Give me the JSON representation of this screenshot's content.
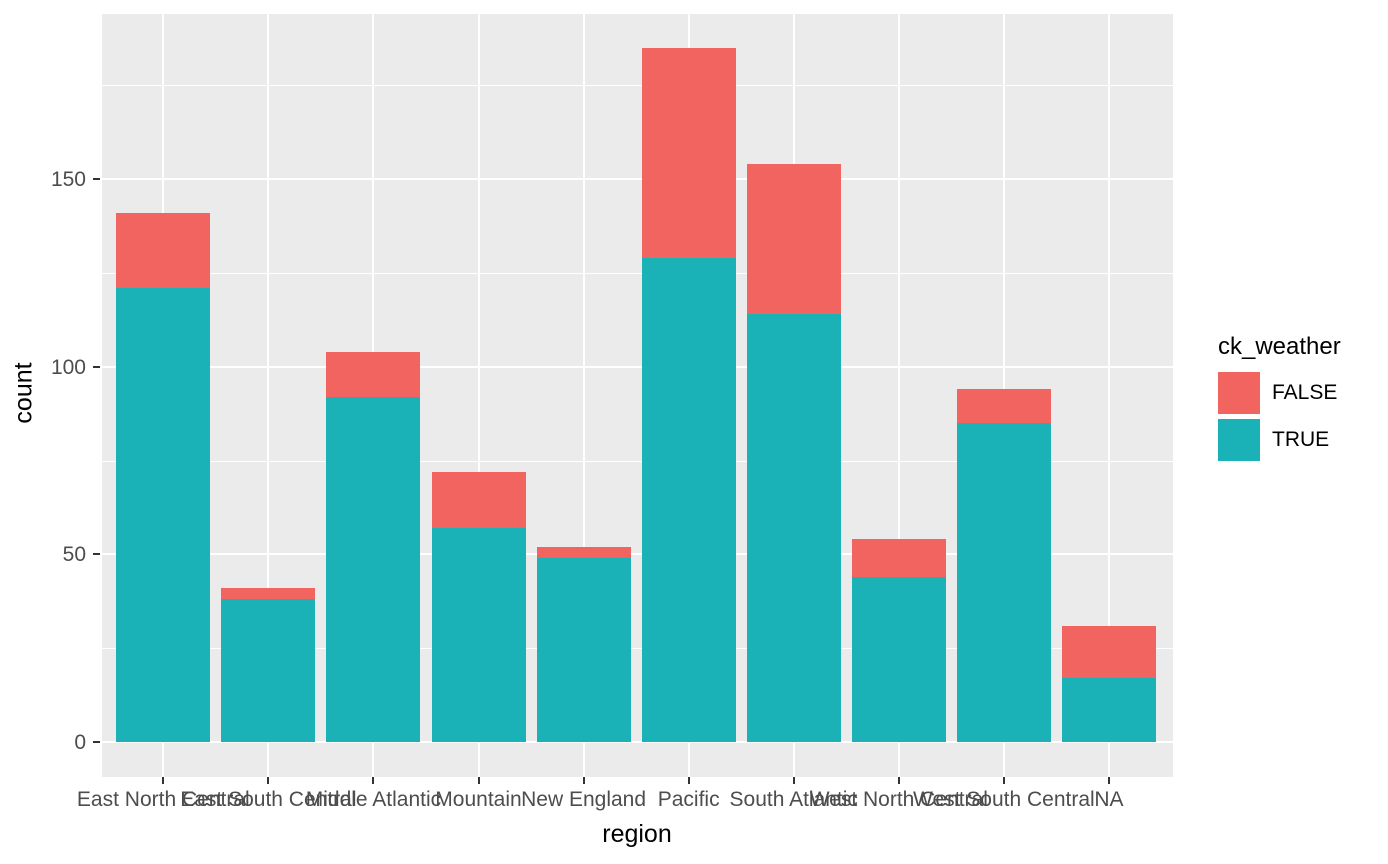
{
  "chart_data": {
    "type": "bar",
    "stacked": true,
    "title": "",
    "xlabel": "region",
    "ylabel": "count",
    "categories": [
      "East North Central",
      "East South Central",
      "Middle Atlantic",
      "Mountain",
      "New England",
      "Pacific",
      "South Atlantic",
      "West North Central",
      "West South Central",
      "NA"
    ],
    "series": [
      {
        "name": "TRUE",
        "color": "#1AB2B6",
        "values": [
          121,
          38,
          92,
          57,
          49,
          129,
          114,
          44,
          85,
          17
        ]
      },
      {
        "name": "FALSE",
        "color": "#F26460",
        "values": [
          20,
          3,
          12,
          15,
          3,
          56,
          40,
          10,
          9,
          14
        ]
      }
    ],
    "totals": [
      141,
      41,
      104,
      72,
      52,
      185,
      154,
      54,
      94,
      31
    ],
    "y_ticks": [
      0,
      50,
      100,
      150
    ],
    "y_minor_ticks": [
      25,
      75,
      125,
      175
    ],
    "ylim": [
      -9,
      194
    ],
    "grid": true,
    "legend": {
      "title": "ck_weather",
      "position": "right",
      "entries": [
        {
          "label": "FALSE",
          "color": "#F26460"
        },
        {
          "label": "TRUE",
          "color": "#1AB2B6"
        }
      ]
    },
    "style": {
      "panel_background": "#EBEBEB",
      "gridline_color": "#FFFFFF",
      "tick_label_color": "#4D4D4D",
      "tick_mark_color": "#333333",
      "axis_title_color": "#000000"
    }
  }
}
